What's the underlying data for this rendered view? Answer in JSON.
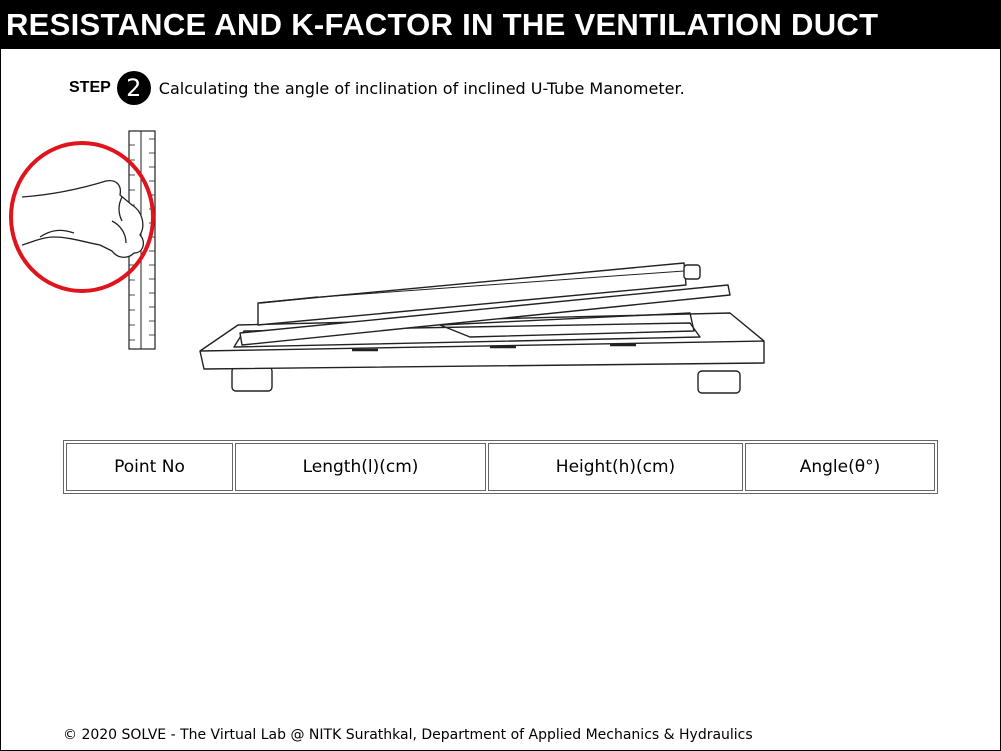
{
  "header": {
    "title": "RESISTANCE AND K-FACTOR IN THE VENTILATION DUCT"
  },
  "step": {
    "label": "STEP",
    "number": "2",
    "description": "Calculating the angle of inclination of inclined U-Tube Manometer."
  },
  "table": {
    "columns": [
      "Point No",
      "Length(l)(cm)",
      "Height(h)(cm)",
      "Angle(θ°)"
    ]
  },
  "footer": {
    "text": "© 2020 SOLVE - The Virtual Lab @ NITK Surathkal, Department of Applied Mechanics & Hydraulics"
  },
  "icons": {
    "hand": "hand-with-ruler-icon",
    "manometer": "inclined-manometer-illustration"
  },
  "colors": {
    "highlight_circle": "#e0141c",
    "header_bg": "#000000",
    "header_text": "#ffffff"
  }
}
